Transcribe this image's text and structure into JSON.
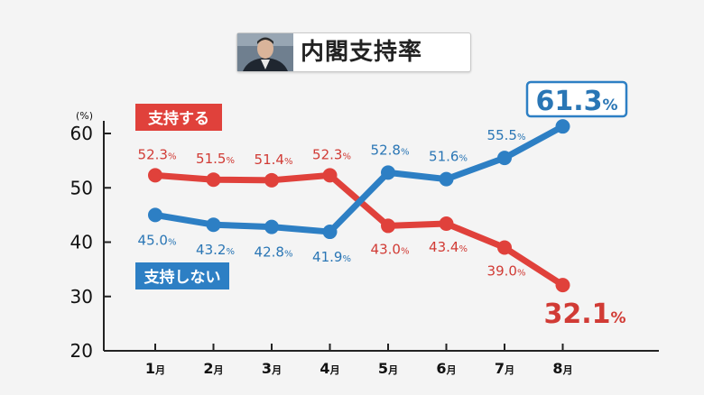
{
  "title": "内閣支持率",
  "chart_data": {
    "type": "line",
    "unit_label": "(%)",
    "categories": [
      "1月",
      "2月",
      "3月",
      "4月",
      "5月",
      "6月",
      "7月",
      "8月"
    ],
    "ylim": [
      20,
      60
    ],
    "yticks": [
      "20",
      "30",
      "40",
      "50",
      "60"
    ],
    "series": [
      {
        "name": "支持する",
        "color": "#e0413b",
        "label_color": "#d13b35",
        "values": [
          52.3,
          51.5,
          51.4,
          52.3,
          43.0,
          43.4,
          39.0,
          32.1
        ],
        "labels": [
          "52.3",
          "51.5",
          "51.4",
          "52.3",
          "43.0",
          "43.4",
          "39.0",
          "32.1"
        ]
      },
      {
        "name": "支持しない",
        "color": "#2d7fc4",
        "label_color": "#2a76b5",
        "values": [
          45.0,
          43.2,
          42.8,
          41.9,
          52.8,
          51.6,
          55.5,
          61.3
        ],
        "labels": [
          "45.0",
          "43.2",
          "42.8",
          "41.9",
          "52.8",
          "51.6",
          "55.5",
          "61.3"
        ]
      }
    ],
    "percent_sign": "%"
  }
}
